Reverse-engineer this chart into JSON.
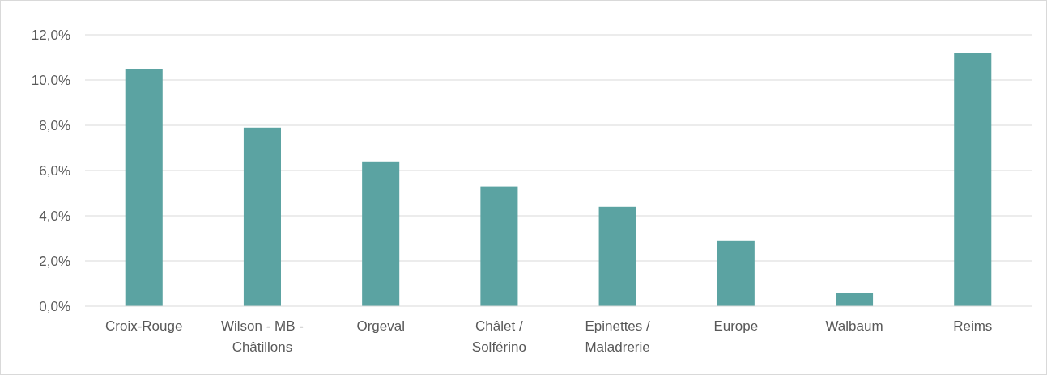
{
  "chart_data": {
    "type": "bar",
    "categories": [
      "Croix-Rouge",
      "Wilson - MB - Châtillons",
      "Orgeval",
      "Châlet / Solférino",
      "Epinettes / Maladrerie",
      "Europe",
      "Walbaum",
      "Reims"
    ],
    "values": [
      10.5,
      7.9,
      6.4,
      5.3,
      4.4,
      2.9,
      0.6,
      11.2
    ],
    "color": "#5ba3a2",
    "ylim": [
      0,
      12
    ],
    "yticks": [
      {
        "value": 0,
        "label": "0,0%"
      },
      {
        "value": 2,
        "label": "2,0%"
      },
      {
        "value": 4,
        "label": "4,0%"
      },
      {
        "value": 6,
        "label": "6,0%"
      },
      {
        "value": 8,
        "label": "8,0%"
      },
      {
        "value": 10,
        "label": "10,0%"
      },
      {
        "value": 12,
        "label": "12,0%"
      }
    ],
    "grid": "y"
  }
}
